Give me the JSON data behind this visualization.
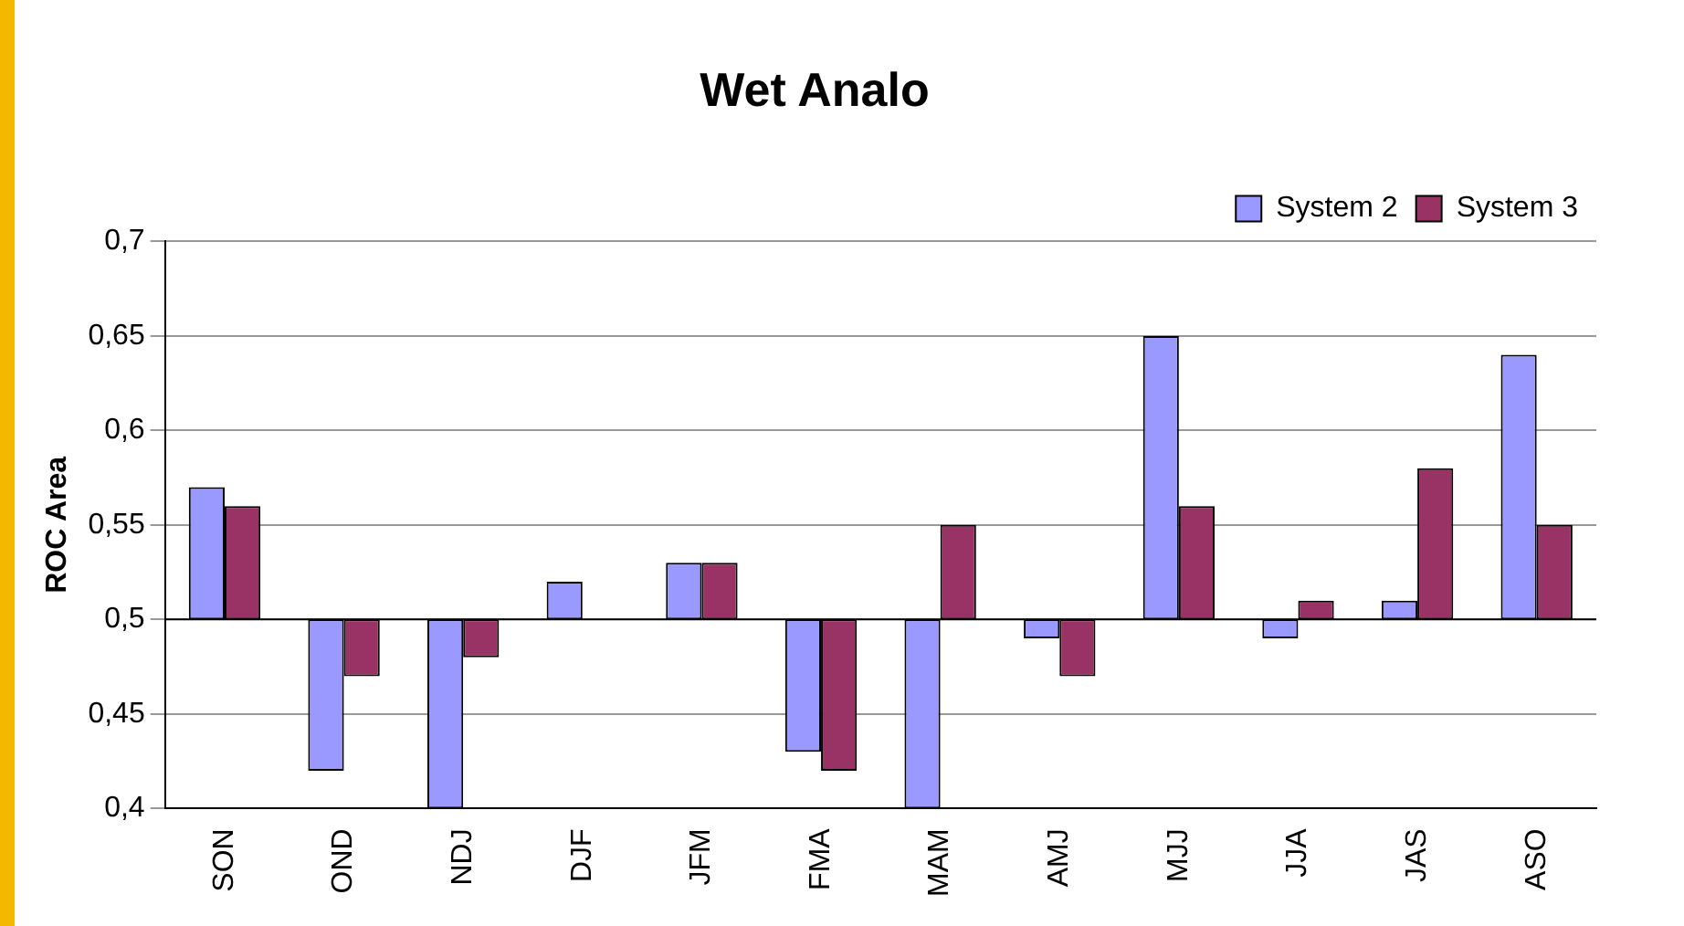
{
  "chart_data": {
    "type": "bar",
    "title": "Wet Analo",
    "ylabel": "ROC Area",
    "categories": [
      "SON",
      "OND",
      "NDJ",
      "DJF",
      "JFM",
      "FMA",
      "MAM",
      "AMJ",
      "MJJ",
      "JJA",
      "JAS",
      "ASO"
    ],
    "series": [
      {
        "name": "System 2",
        "color": "#9999ff",
        "base": [
          0.5,
          0.5,
          0.5,
          0.5,
          0.5,
          0.5,
          0.5,
          0.5,
          0.5,
          0.5,
          0.5,
          0.5
        ],
        "values": [
          0.07,
          -0.08,
          -0.1,
          0.02,
          0.03,
          -0.07,
          -0.1,
          -0.01,
          0.15,
          -0.01,
          0.01,
          0.14
        ]
      },
      {
        "name": "System 3",
        "color": "#993366",
        "base": [
          0.5,
          0.5,
          0.5,
          null,
          0.5,
          0.5,
          0.5,
          0.5,
          0.5,
          0.5,
          0.5,
          0.5
        ],
        "values": [
          0.06,
          -0.03,
          -0.02,
          null,
          0.03,
          -0.08,
          0.05,
          -0.03,
          0.06,
          0.01,
          0.08,
          0.05
        ]
      }
    ],
    "ylim": [
      0.4,
      0.7
    ],
    "yticks": [
      {
        "value": 0.4,
        "label": "0,4"
      },
      {
        "value": 0.45,
        "label": "0,45"
      },
      {
        "value": 0.5,
        "label": "0,5"
      },
      {
        "value": 0.55,
        "label": "0,55"
      },
      {
        "value": 0.6,
        "label": "0,6"
      },
      {
        "value": 0.65,
        "label": "0,65"
      },
      {
        "value": 0.7,
        "label": "0,7"
      }
    ],
    "ref_lines": [
      {
        "axis": "y",
        "value": 0.5,
        "color": "#000000"
      }
    ],
    "grid": "y",
    "legend": "top right"
  }
}
